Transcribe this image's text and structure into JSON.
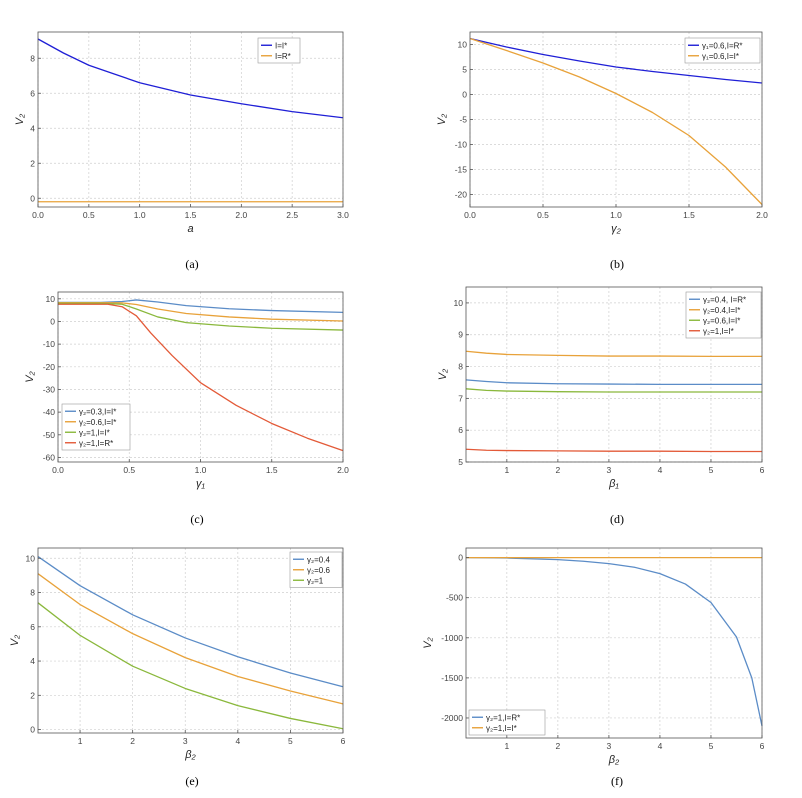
{
  "chart_data": [
    {
      "panel": "a",
      "caption": "(a)",
      "type": "line",
      "xlabel": "a",
      "ylabel": "V₂",
      "xlim": [
        0,
        3
      ],
      "ylim": [
        -0.5,
        9.5
      ],
      "xticks": [
        0,
        0.5,
        1,
        1.5,
        2,
        2.5,
        3
      ],
      "xtick_labels": [
        "0.0",
        "0.5",
        "1.0",
        "1.5",
        "2.0",
        "2.5",
        "3.0"
      ],
      "yticks": [
        0,
        2,
        4,
        6,
        8
      ],
      "ytick_labels": [
        "0",
        "2",
        "4",
        "6",
        "8"
      ],
      "legend_position": "top-right",
      "series": [
        {
          "name": "I=I*",
          "color": "#1f1fd6",
          "x": [
            0,
            0.25,
            0.5,
            0.75,
            1,
            1.5,
            2,
            2.5,
            3
          ],
          "y": [
            9.1,
            8.3,
            7.6,
            7.1,
            6.6,
            5.9,
            5.4,
            4.95,
            4.6
          ]
        },
        {
          "name": "I=R*",
          "color": "#e8a23a",
          "x": [
            0,
            3
          ],
          "y": [
            -0.2,
            -0.2
          ]
        }
      ]
    },
    {
      "panel": "b",
      "caption": "(b)",
      "type": "line",
      "xlabel": "γ₂",
      "ylabel": "V₂",
      "xlim": [
        0,
        2
      ],
      "ylim": [
        -22.5,
        12.5
      ],
      "xticks": [
        0,
        0.5,
        1,
        1.5,
        2
      ],
      "xtick_labels": [
        "0.0",
        "0.5",
        "1.0",
        "1.5",
        "2.0"
      ],
      "yticks": [
        -20,
        -15,
        -10,
        -5,
        0,
        5,
        10
      ],
      "ytick_labels": [
        "-20",
        "-15",
        "-10",
        "-5",
        "0",
        "5",
        "10"
      ],
      "legend_position": "top-right",
      "series": [
        {
          "name": "γ₁=0.6,I=R*",
          "color": "#1f1fd6",
          "x": [
            0,
            0.25,
            0.5,
            0.75,
            1,
            1.25,
            1.5,
            1.75,
            2
          ],
          "y": [
            11.2,
            9.5,
            8.0,
            6.7,
            5.5,
            4.6,
            3.8,
            3.0,
            2.3
          ]
        },
        {
          "name": "γ₁=0.6,I=I*",
          "color": "#e8a23a",
          "x": [
            0,
            0.25,
            0.5,
            0.75,
            1,
            1.25,
            1.5,
            1.75,
            2
          ],
          "y": [
            11.2,
            8.8,
            6.3,
            3.5,
            0.2,
            -3.6,
            -8.2,
            -14.5,
            -22.0
          ]
        }
      ]
    },
    {
      "panel": "c",
      "caption": "(c)",
      "type": "line",
      "xlabel": "γ₁",
      "ylabel": "V₂",
      "xlim": [
        0,
        2
      ],
      "ylim": [
        -62,
        13
      ],
      "xticks": [
        0,
        0.5,
        1,
        1.5,
        2
      ],
      "xtick_labels": [
        "0.0",
        "0.5",
        "1.0",
        "1.5",
        "2.0"
      ],
      "yticks": [
        -60,
        -50,
        -40,
        -30,
        -20,
        -10,
        0,
        10
      ],
      "ytick_labels": [
        "-60",
        "-50",
        "-40",
        "-30",
        "-20",
        "-10",
        "0",
        "10"
      ],
      "legend_position": "bottom-left",
      "series": [
        {
          "name": "γ₂=0.3,I=I*",
          "color": "#5b8cc7",
          "x": [
            0,
            0.3,
            0.45,
            0.55,
            0.7,
            0.9,
            1.2,
            1.5,
            2
          ],
          "y": [
            8.4,
            8.4,
            8.8,
            9.5,
            8.6,
            7.0,
            5.6,
            4.8,
            4.0
          ]
        },
        {
          "name": "γ₂=0.6,I=I*",
          "color": "#e8a23a",
          "x": [
            0,
            0.3,
            0.45,
            0.55,
            0.7,
            0.9,
            1.2,
            1.5,
            2
          ],
          "y": [
            8.3,
            8.3,
            8.2,
            7.5,
            5.5,
            3.5,
            2.0,
            1.0,
            0.2
          ]
        },
        {
          "name": "γ₂=1,I=I*",
          "color": "#8ab83c",
          "x": [
            0,
            0.3,
            0.45,
            0.55,
            0.7,
            0.9,
            1.2,
            1.5,
            2
          ],
          "y": [
            8.0,
            8.0,
            7.6,
            5.5,
            2.0,
            -0.5,
            -2.0,
            -3.0,
            -3.8
          ]
        },
        {
          "name": "γ₂=1,I=R*",
          "color": "#e35a38",
          "x": [
            0,
            0.35,
            0.45,
            0.55,
            0.65,
            0.8,
            1.0,
            1.25,
            1.5,
            1.75,
            2
          ],
          "y": [
            7.6,
            7.6,
            6.5,
            2.5,
            -5.0,
            -15.0,
            -27.0,
            -37.0,
            -45.0,
            -51.5,
            -57.0
          ]
        }
      ]
    },
    {
      "panel": "d",
      "caption": "(d)",
      "type": "line",
      "xlabel": "β₁",
      "ylabel": "V₂",
      "xlim": [
        0.2,
        6
      ],
      "ylim": [
        5,
        10.5
      ],
      "xticks": [
        1,
        2,
        3,
        4,
        5,
        6
      ],
      "xtick_labels": [
        "1",
        "2",
        "3",
        "4",
        "5",
        "6"
      ],
      "yticks": [
        5,
        6,
        7,
        8,
        9,
        10
      ],
      "ytick_labels": [
        "5",
        "6",
        "7",
        "8",
        "9",
        "10"
      ],
      "legend_position": "top-right",
      "series": [
        {
          "name": "γ₂=0.4, I=R*",
          "color": "#5b8cc7",
          "x": [
            0.2,
            0.6,
            1,
            2,
            3,
            4,
            5,
            6
          ],
          "y": [
            7.58,
            7.53,
            7.49,
            7.46,
            7.45,
            7.44,
            7.44,
            7.44
          ]
        },
        {
          "name": "γ₂=0.4,I=I*",
          "color": "#e8a23a",
          "x": [
            0.2,
            0.6,
            1,
            2,
            3,
            4,
            5,
            6
          ],
          "y": [
            8.48,
            8.42,
            8.38,
            8.35,
            8.33,
            8.33,
            8.32,
            8.32
          ]
        },
        {
          "name": "γ₂=0.6,I=I*",
          "color": "#8ab83c",
          "x": [
            0.2,
            0.6,
            1,
            2,
            3,
            4,
            5,
            6
          ],
          "y": [
            7.3,
            7.25,
            7.23,
            7.21,
            7.2,
            7.2,
            7.2,
            7.2
          ]
        },
        {
          "name": "γ₂=1,I=I*",
          "color": "#e35a38",
          "x": [
            0.2,
            0.6,
            1,
            2,
            3,
            4,
            5,
            6
          ],
          "y": [
            5.4,
            5.37,
            5.36,
            5.35,
            5.34,
            5.34,
            5.33,
            5.33
          ]
        }
      ]
    },
    {
      "panel": "e",
      "caption": "(e)",
      "type": "line",
      "xlabel": "β₂",
      "ylabel": "V₂",
      "xlim": [
        0.2,
        6
      ],
      "ylim": [
        -0.2,
        10.6
      ],
      "xticks": [
        1,
        2,
        3,
        4,
        5,
        6
      ],
      "xtick_labels": [
        "1",
        "2",
        "3",
        "4",
        "5",
        "6"
      ],
      "yticks": [
        0,
        2,
        4,
        6,
        8,
        10
      ],
      "ytick_labels": [
        "0",
        "2",
        "4",
        "6",
        "8",
        "10"
      ],
      "legend_position": "top-right",
      "series": [
        {
          "name": "γ₂=0.4",
          "color": "#5b8cc7",
          "x": [
            0.2,
            1,
            2,
            3,
            4,
            5,
            6
          ],
          "y": [
            10.1,
            8.4,
            6.7,
            5.35,
            4.25,
            3.3,
            2.5
          ]
        },
        {
          "name": "γ₂=0.6",
          "color": "#e8a23a",
          "x": [
            0.2,
            1,
            2,
            3,
            4,
            5,
            6
          ],
          "y": [
            9.1,
            7.3,
            5.6,
            4.2,
            3.1,
            2.25,
            1.5
          ]
        },
        {
          "name": "γ₂=1",
          "color": "#8ab83c",
          "x": [
            0.2,
            1,
            2,
            3,
            4,
            5,
            6
          ],
          "y": [
            7.4,
            5.5,
            3.7,
            2.4,
            1.4,
            0.65,
            0.05
          ]
        }
      ]
    },
    {
      "panel": "f",
      "caption": "(f)",
      "type": "line",
      "xlabel": "β₂",
      "ylabel": "V₂",
      "xlim": [
        0.2,
        6
      ],
      "ylim": [
        -2250,
        120
      ],
      "xticks": [
        1,
        2,
        3,
        4,
        5,
        6
      ],
      "xtick_labels": [
        "1",
        "2",
        "3",
        "4",
        "5",
        "6"
      ],
      "yticks": [
        -2000,
        -1500,
        -1000,
        -500,
        0
      ],
      "ytick_labels": [
        "-2000",
        "-1500",
        "-1000",
        "-500",
        "0"
      ],
      "legend_position": "bottom-left",
      "series": [
        {
          "name": "γ₂=1,I=R*",
          "color": "#5b8cc7",
          "x": [
            0.2,
            1,
            2,
            2.5,
            3,
            3.5,
            4,
            4.5,
            5,
            5.5,
            5.8,
            6
          ],
          "y": [
            0,
            -5,
            -25,
            -45,
            -75,
            -120,
            -200,
            -330,
            -560,
            -990,
            -1500,
            -2100
          ]
        },
        {
          "name": "γ₂=1,I=I*",
          "color": "#e8a23a",
          "x": [
            0.2,
            6
          ],
          "y": [
            0,
            0
          ]
        }
      ]
    }
  ]
}
